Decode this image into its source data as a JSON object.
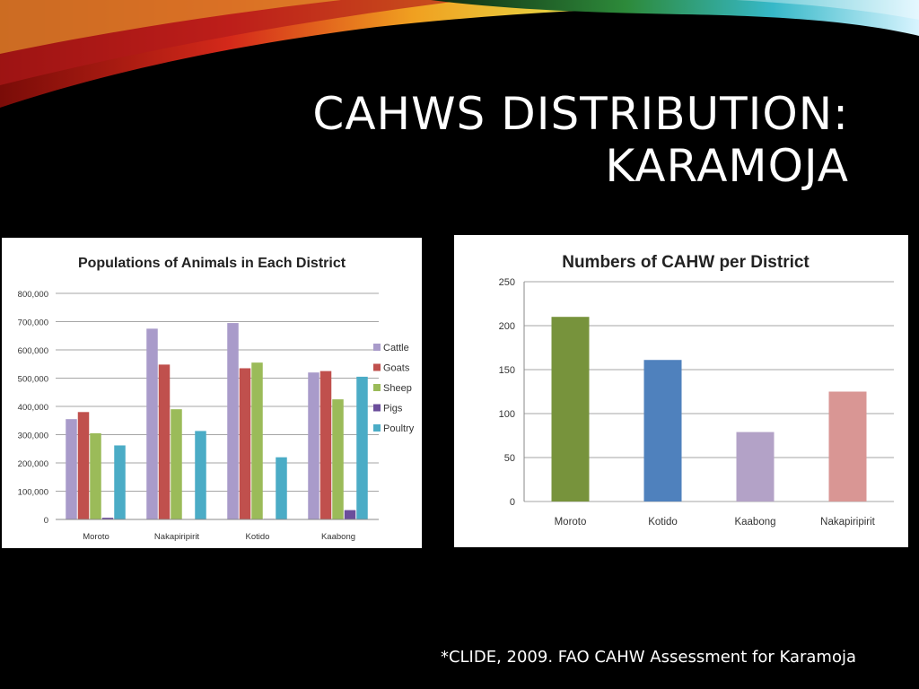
{
  "slide": {
    "title_line1": "CAHWS DISTRIBUTION:",
    "title_line2": "KARAMOJA",
    "citation": "*CLIDE, 2009. FAO CAHW Assessment for Karamoja"
  },
  "chart_data": [
    {
      "type": "bar",
      "title": "Populations of Animals in Each District",
      "categories": [
        "Moroto",
        "Nakapiripirit",
        "Kotido",
        "Kaabong"
      ],
      "ylim": [
        0,
        800000
      ],
      "yticks": [
        "0",
        "100,000",
        "200,000",
        "300,000",
        "400,000",
        "500,000",
        "600,000",
        "700,000",
        "800,000"
      ],
      "grid": true,
      "legend": "right",
      "series": [
        {
          "name": "Cattle",
          "color": "#A99BCA",
          "values": [
            355000,
            675000,
            695000,
            520000
          ]
        },
        {
          "name": "Goats",
          "color": "#C0504D",
          "values": [
            380000,
            548000,
            535000,
            525000
          ]
        },
        {
          "name": "Sheep",
          "color": "#9BBB59",
          "values": [
            305000,
            390000,
            555000,
            425000
          ]
        },
        {
          "name": "Pigs",
          "color": "#6B4E9B",
          "values": [
            6000,
            0,
            2000,
            33000
          ]
        },
        {
          "name": "Poultry",
          "color": "#4BACC6",
          "values": [
            262000,
            313000,
            220000,
            505000
          ]
        }
      ]
    },
    {
      "type": "bar",
      "title": "Numbers of CAHW per District",
      "categories": [
        "Moroto",
        "Kotido",
        "Kaabong",
        "Nakapiripirit"
      ],
      "values": [
        210,
        161,
        79,
        125
      ],
      "colors": [
        "#77933C",
        "#4F81BD",
        "#B3A2C7",
        "#D99694"
      ],
      "ylim": [
        0,
        250
      ],
      "yticks": [
        "0",
        "50",
        "100",
        "150",
        "200",
        "250"
      ],
      "grid": true,
      "legend": "none"
    }
  ]
}
